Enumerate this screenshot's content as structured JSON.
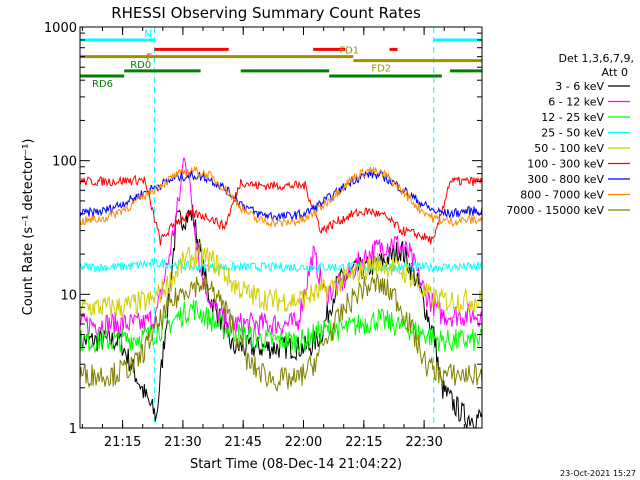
{
  "chart_data": {
    "type": "line",
    "title": "RHESSI Observing Summary Count Rates",
    "xlabel": "Start Time (08-Dec-14 21:04:22)",
    "ylabel": "Count Rate (s⁻¹ detector⁻¹)",
    "y_scale": "log",
    "ylim": [
      1,
      1000
    ],
    "xlim_minutes": [
      0,
      100
    ],
    "y_ticks": [
      {
        "value": 1,
        "label": "1"
      },
      {
        "value": 10,
        "label": "10"
      },
      {
        "value": 100,
        "label": "100"
      },
      {
        "value": 1000,
        "label": "1000"
      }
    ],
    "x_ticks": [
      {
        "minute": 10.6,
        "label": "21:15"
      },
      {
        "minute": 25.6,
        "label": "21:30"
      },
      {
        "minute": 40.6,
        "label": "21:45"
      },
      {
        "minute": 55.6,
        "label": "22:00"
      },
      {
        "minute": 70.6,
        "label": "22:15"
      },
      {
        "minute": 85.6,
        "label": "22:30"
      }
    ],
    "detector_info": [
      "Det 1,3,6,7,9,",
      "Att 0"
    ],
    "timestamp": "23-Oct-2021 15:27",
    "flag_bars": [
      {
        "label": "N",
        "color": "#00ffff",
        "y": 800,
        "segments": [
          [
            0,
            18.5
          ],
          [
            88,
            100
          ]
        ]
      },
      {
        "label": "F",
        "color": "#ff0000",
        "y": 680,
        "segments": [
          [
            18.5,
            37
          ],
          [
            58,
            66
          ],
          [
            77,
            79
          ]
        ]
      },
      {
        "label": "FD1",
        "color": "#a09000",
        "y": 600,
        "segments": [
          [
            0,
            68
          ]
        ]
      },
      {
        "label": "FD2",
        "color": "#a09000",
        "y": 560,
        "segments": [
          [
            68,
            100
          ]
        ]
      },
      {
        "label": "RD0",
        "color": "#008000",
        "y": 470,
        "segments": [
          [
            11,
            30
          ],
          [
            40,
            62
          ],
          [
            92,
            100
          ]
        ]
      },
      {
        "label": "RD6",
        "color": "#008000",
        "y": 430,
        "segments": [
          [
            0,
            11
          ],
          [
            62,
            90
          ]
        ]
      }
    ],
    "night_boundaries": [
      0,
      18.5,
      88,
      100
    ],
    "series": [
      {
        "name": "3 - 6 keV",
        "color": "#000000",
        "x": [
          0,
          10,
          16,
          19,
          24,
          28,
          32,
          38,
          45,
          52,
          57,
          60,
          64,
          68,
          72,
          76,
          80,
          84,
          88,
          90,
          93,
          96,
          98,
          100
        ],
        "values": [
          4.5,
          4.5,
          1.8,
          1.2,
          35,
          40,
          10,
          4,
          4,
          4,
          4,
          5,
          12,
          15,
          16,
          18,
          22,
          12,
          5,
          2,
          1.5,
          1.2,
          1.2,
          1.2
        ]
      },
      {
        "name": "6 - 12 keV",
        "color": "#ff00ff",
        "x": [
          0,
          10,
          16,
          19,
          22,
          25,
          26,
          28,
          30,
          33,
          37,
          42,
          48,
          54,
          58,
          61,
          65,
          70,
          74,
          78,
          82,
          86,
          90,
          95,
          100
        ],
        "values": [
          6,
          6,
          6,
          7,
          18,
          60,
          120,
          45,
          15,
          8,
          6,
          6,
          6,
          6,
          20,
          10,
          12,
          18,
          22,
          25,
          20,
          10,
          7,
          7,
          7
        ]
      },
      {
        "name": "12 - 25 keV",
        "color": "#00ff00",
        "x": [
          0,
          10,
          18,
          22,
          28,
          34,
          40,
          46,
          52,
          56,
          58,
          62,
          66,
          70,
          74,
          78,
          82,
          86,
          90,
          95,
          100
        ],
        "values": [
          4.5,
          4.5,
          5,
          6,
          8,
          6,
          5,
          4.5,
          4.5,
          4.5,
          5,
          5.5,
          5.5,
          6,
          6.5,
          6,
          5.5,
          5,
          4.5,
          4.5,
          4.5
        ]
      },
      {
        "name": "25 - 50 keV",
        "color": "#00ffff",
        "x": [
          0,
          10,
          18,
          22,
          28,
          34,
          40,
          46,
          52,
          56,
          60,
          64,
          68,
          72,
          76,
          80,
          84,
          88,
          92,
          96,
          100
        ],
        "values": [
          16,
          16,
          17,
          17,
          16,
          16,
          16,
          16,
          16,
          16,
          16,
          16,
          16,
          16,
          16,
          16,
          16,
          16,
          16,
          16,
          16
        ]
      },
      {
        "name": "50 - 100 keV",
        "color": "#d0d000",
        "x": [
          0,
          10,
          18,
          22,
          26,
          30,
          34,
          38,
          42,
          48,
          54,
          58,
          62,
          66,
          70,
          74,
          78,
          82,
          86,
          90,
          94,
          100
        ],
        "values": [
          8,
          8,
          9,
          12,
          18,
          20,
          17,
          12,
          10,
          9,
          9,
          10,
          11,
          13,
          15,
          17,
          16,
          14,
          10,
          9,
          9,
          9
        ]
      },
      {
        "name": "100 - 300 keV",
        "color": "#ff0000",
        "x": [
          0,
          8,
          16,
          20,
          24,
          28,
          32,
          36,
          40,
          44,
          50,
          56,
          60,
          64,
          68,
          72,
          76,
          80,
          84,
          88,
          92,
          100
        ],
        "values": [
          70,
          70,
          72,
          25,
          35,
          40,
          38,
          32,
          70,
          65,
          65,
          65,
          30,
          35,
          40,
          42,
          38,
          30,
          28,
          25,
          70,
          70
        ]
      },
      {
        "name": "300 - 800 keV",
        "color": "#0000ff",
        "x": [
          0,
          6,
          12,
          18,
          24,
          28,
          32,
          36,
          40,
          44,
          50,
          56,
          60,
          64,
          68,
          72,
          76,
          80,
          84,
          88,
          92,
          96,
          100
        ],
        "values": [
          40,
          42,
          50,
          62,
          75,
          78,
          74,
          62,
          48,
          40,
          38,
          40,
          48,
          58,
          72,
          80,
          75,
          62,
          50,
          42,
          40,
          42,
          42
        ]
      },
      {
        "name": "800 - 7000 keV",
        "color": "#ff8c00",
        "x": [
          0,
          6,
          12,
          18,
          24,
          28,
          32,
          36,
          40,
          44,
          50,
          56,
          60,
          64,
          68,
          72,
          76,
          80,
          84,
          88,
          92,
          96,
          100
        ],
        "values": [
          35,
          37,
          45,
          60,
          78,
          85,
          78,
          62,
          45,
          36,
          34,
          36,
          45,
          58,
          75,
          85,
          78,
          60,
          45,
          37,
          35,
          36,
          36
        ]
      },
      {
        "name": "7000 - 15000 keV",
        "color": "#808000",
        "x": [
          0,
          8,
          14,
          18,
          22,
          26,
          30,
          34,
          38,
          42,
          48,
          54,
          58,
          62,
          66,
          70,
          74,
          78,
          82,
          86,
          90,
          95,
          100
        ],
        "values": [
          2.5,
          2.5,
          3,
          5,
          8,
          11,
          12,
          10,
          6,
          3,
          2.3,
          2.3,
          3,
          5,
          8,
          11,
          12,
          10,
          6,
          3,
          2.5,
          2.5,
          2.5
        ]
      }
    ]
  }
}
